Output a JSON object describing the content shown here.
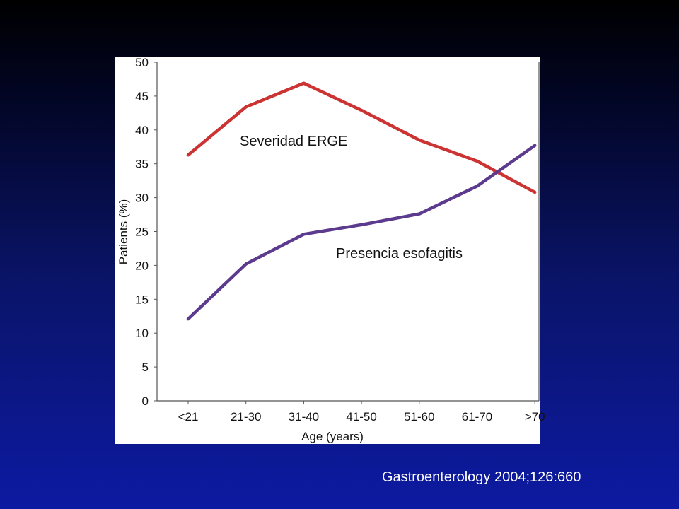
{
  "citation": "Gastroenterology 2004;126:660",
  "chart_data": {
    "type": "line",
    "title": "",
    "xlabel": "Age (years)",
    "ylabel": "Patients (%)",
    "categories": [
      "<21",
      "21-30",
      "31-40",
      "41-50",
      "51-60",
      "61-70",
      ">70"
    ],
    "ylim": [
      0,
      50
    ],
    "yticks": [
      0,
      5,
      10,
      15,
      20,
      25,
      30,
      35,
      40,
      45,
      50
    ],
    "grid": false,
    "series": [
      {
        "name": "Severidad ERGE",
        "color": "#cc3333",
        "values": [
          36.3,
          43.4,
          46.9,
          42.9,
          38.5,
          35.4,
          30.8
        ]
      },
      {
        "name": "Presencia esofagitis",
        "color": "#5c3a8e",
        "values": [
          12.1,
          20.2,
          24.6,
          26.0,
          27.6,
          31.7,
          37.7
        ]
      }
    ]
  }
}
